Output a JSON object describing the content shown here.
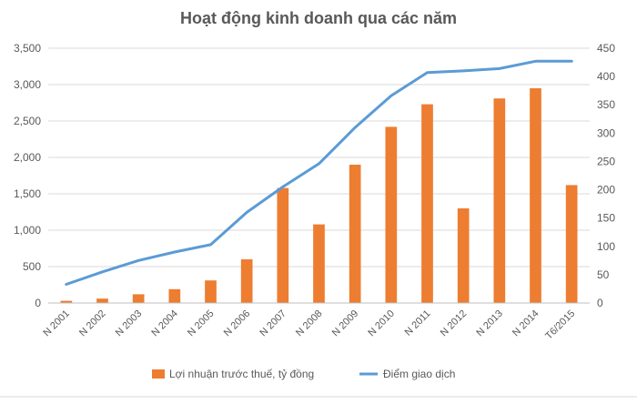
{
  "chart_data": {
    "type": "bar",
    "title": "Hoạt động kinh doanh qua các năm",
    "categories": [
      "N 2001",
      "N 2002",
      "N 2003",
      "N 2004",
      "N 2005",
      "N 2006",
      "N 2007",
      "N 2008",
      "N 2009",
      "N 2010",
      "N 2011",
      "N 2012",
      "N 2013",
      "N 2014",
      "T6/2015"
    ],
    "series": [
      {
        "name": "Lợi nhuận trước thuế, tỷ đồng",
        "type": "bar",
        "axis": "left",
        "color": "#ed7d31",
        "values": [
          30,
          60,
          120,
          190,
          310,
          600,
          1580,
          1080,
          1900,
          2420,
          2730,
          1300,
          2810,
          2950,
          1620
        ]
      },
      {
        "name": "Điểm giao dịch",
        "type": "line",
        "axis": "right",
        "color": "#5b9bd5",
        "values": [
          33,
          55,
          75,
          90,
          103,
          160,
          205,
          246,
          310,
          366,
          407,
          410,
          414,
          427,
          427
        ]
      }
    ],
    "y_left": {
      "min": 0,
      "max": 3500,
      "ticks": [
        "0",
        "500",
        "1,000",
        "1,500",
        "2,000",
        "2,500",
        "3,000",
        "3,500"
      ],
      "tick_values": [
        0,
        500,
        1000,
        1500,
        2000,
        2500,
        3000,
        3500
      ]
    },
    "y_right": {
      "min": 0,
      "max": 450,
      "ticks": [
        "0",
        "50",
        "100",
        "150",
        "200",
        "250",
        "300",
        "350",
        "400",
        "450"
      ],
      "tick_values": [
        0,
        50,
        100,
        150,
        200,
        250,
        300,
        350,
        400,
        450
      ]
    },
    "grid": true,
    "legend_position": "bottom"
  }
}
